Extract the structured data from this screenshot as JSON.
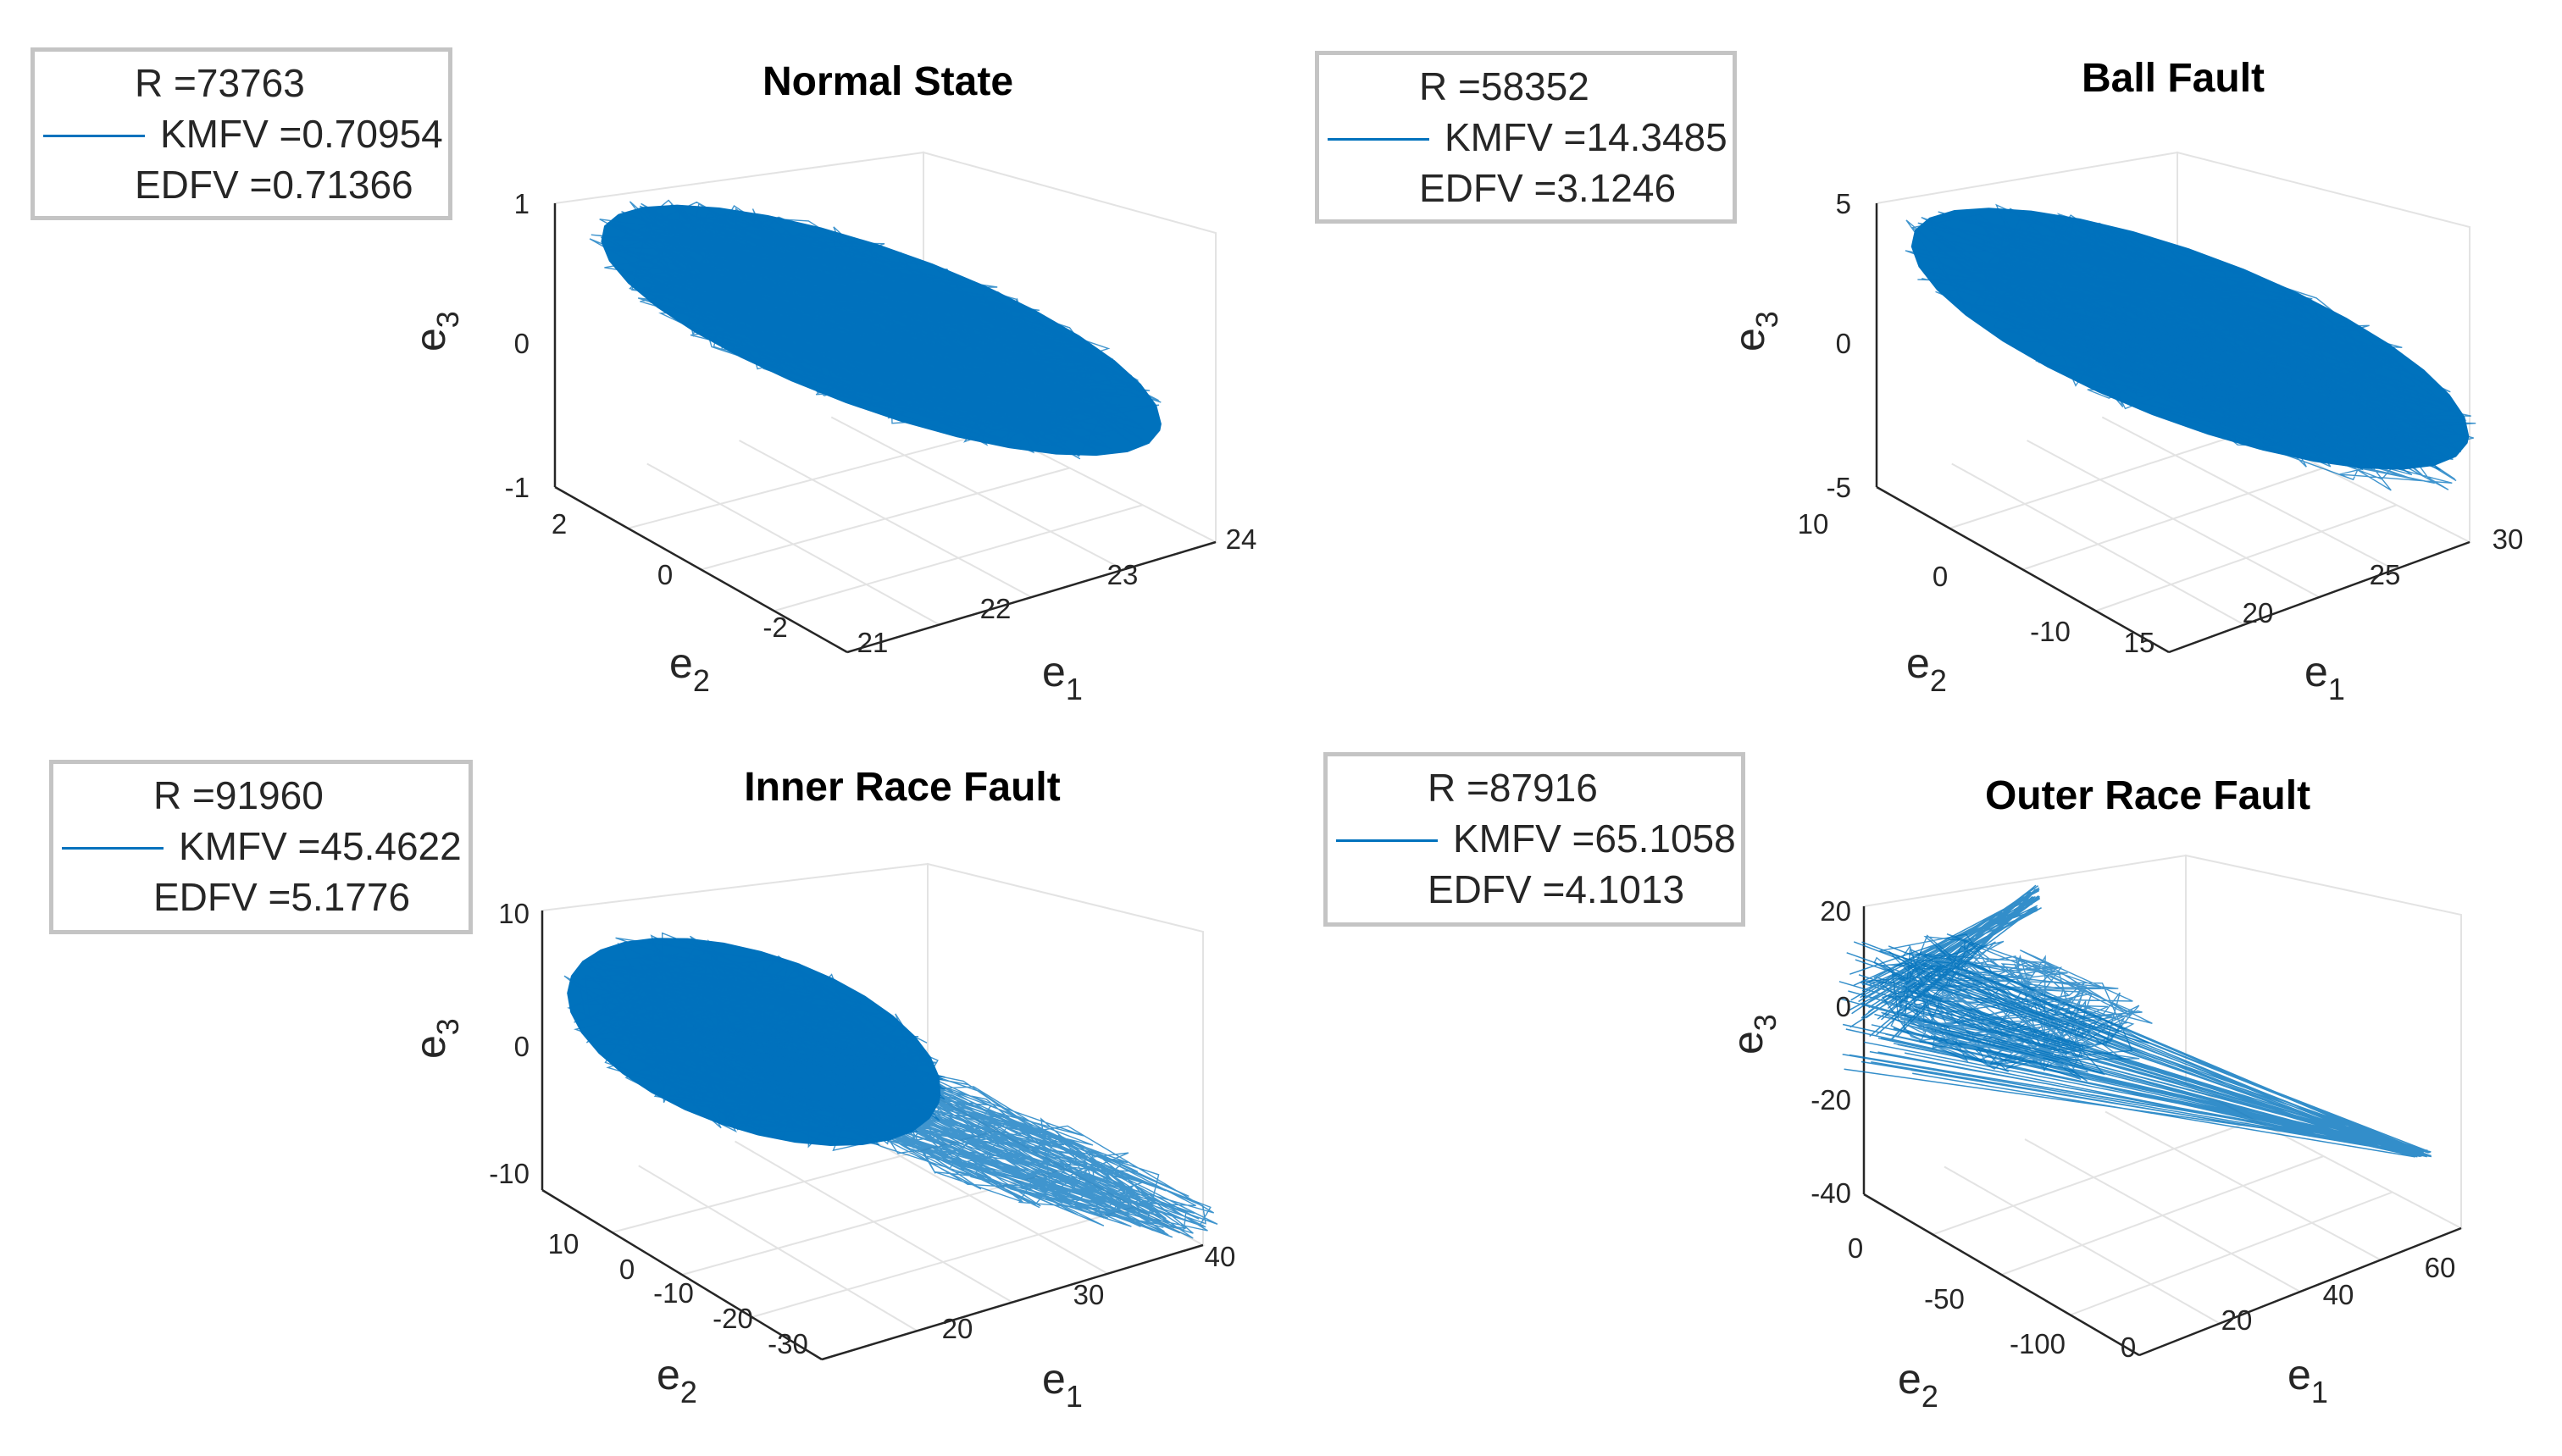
{
  "chart_data": [
    {
      "type": "line",
      "plot": "3d-trajectory",
      "title": "Normal State",
      "xlabel": "e1",
      "ylabel": "e2",
      "zlabel": "e3",
      "x_ticks": [
        "21",
        "22",
        "23",
        "24"
      ],
      "y_ticks": [
        "2",
        "0",
        "-2"
      ],
      "z_ticks": [
        "1",
        "0",
        "-1"
      ],
      "legend": [
        {
          "text": "R =73763",
          "swatch": false
        },
        {
          "text": "KMFV =0.70954",
          "swatch": true
        },
        {
          "text": "EDFV =0.71366",
          "swatch": false
        }
      ],
      "series_color": "#0072BD",
      "grid": true
    },
    {
      "type": "line",
      "plot": "3d-trajectory",
      "title": "Ball Fault",
      "xlabel": "e1",
      "ylabel": "e2",
      "zlabel": "e3",
      "x_ticks": [
        "15",
        "20",
        "25",
        "30"
      ],
      "y_ticks": [
        "10",
        "0",
        "-10"
      ],
      "z_ticks": [
        "5",
        "0",
        "-5"
      ],
      "legend": [
        {
          "text": "R =58352",
          "swatch": false
        },
        {
          "text": "KMFV =14.3485",
          "swatch": true
        },
        {
          "text": "EDFV =3.1246",
          "swatch": false
        }
      ],
      "series_color": "#0072BD",
      "grid": true
    },
    {
      "type": "line",
      "plot": "3d-trajectory",
      "title": "Inner Race Fault",
      "xlabel": "e1",
      "ylabel": "e2",
      "zlabel": "e3",
      "x_ticks": [
        "20",
        "30",
        "40"
      ],
      "y_ticks": [
        "10",
        "0",
        "-10",
        "-20",
        "-30"
      ],
      "z_ticks": [
        "10",
        "0",
        "-10"
      ],
      "legend": [
        {
          "text": "R =91960",
          "swatch": false
        },
        {
          "text": "KMFV =45.4622",
          "swatch": true
        },
        {
          "text": "EDFV =5.1776",
          "swatch": false
        }
      ],
      "series_color": "#0072BD",
      "grid": true
    },
    {
      "type": "line",
      "plot": "3d-trajectory",
      "title": "Outer Race Fault",
      "xlabel": "e1",
      "ylabel": "e2",
      "zlabel": "e3",
      "x_ticks": [
        "0",
        "20",
        "40",
        "60"
      ],
      "y_ticks": [
        "0",
        "-50",
        "-100"
      ],
      "z_ticks": [
        "20",
        "0",
        "-20",
        "-40"
      ],
      "legend": [
        {
          "text": "R =87916",
          "swatch": false
        },
        {
          "text": "KMFV =65.1058",
          "swatch": true
        },
        {
          "text": "EDFV =4.1013",
          "swatch": false
        }
      ],
      "series_color": "#0072BD",
      "grid": true
    }
  ]
}
